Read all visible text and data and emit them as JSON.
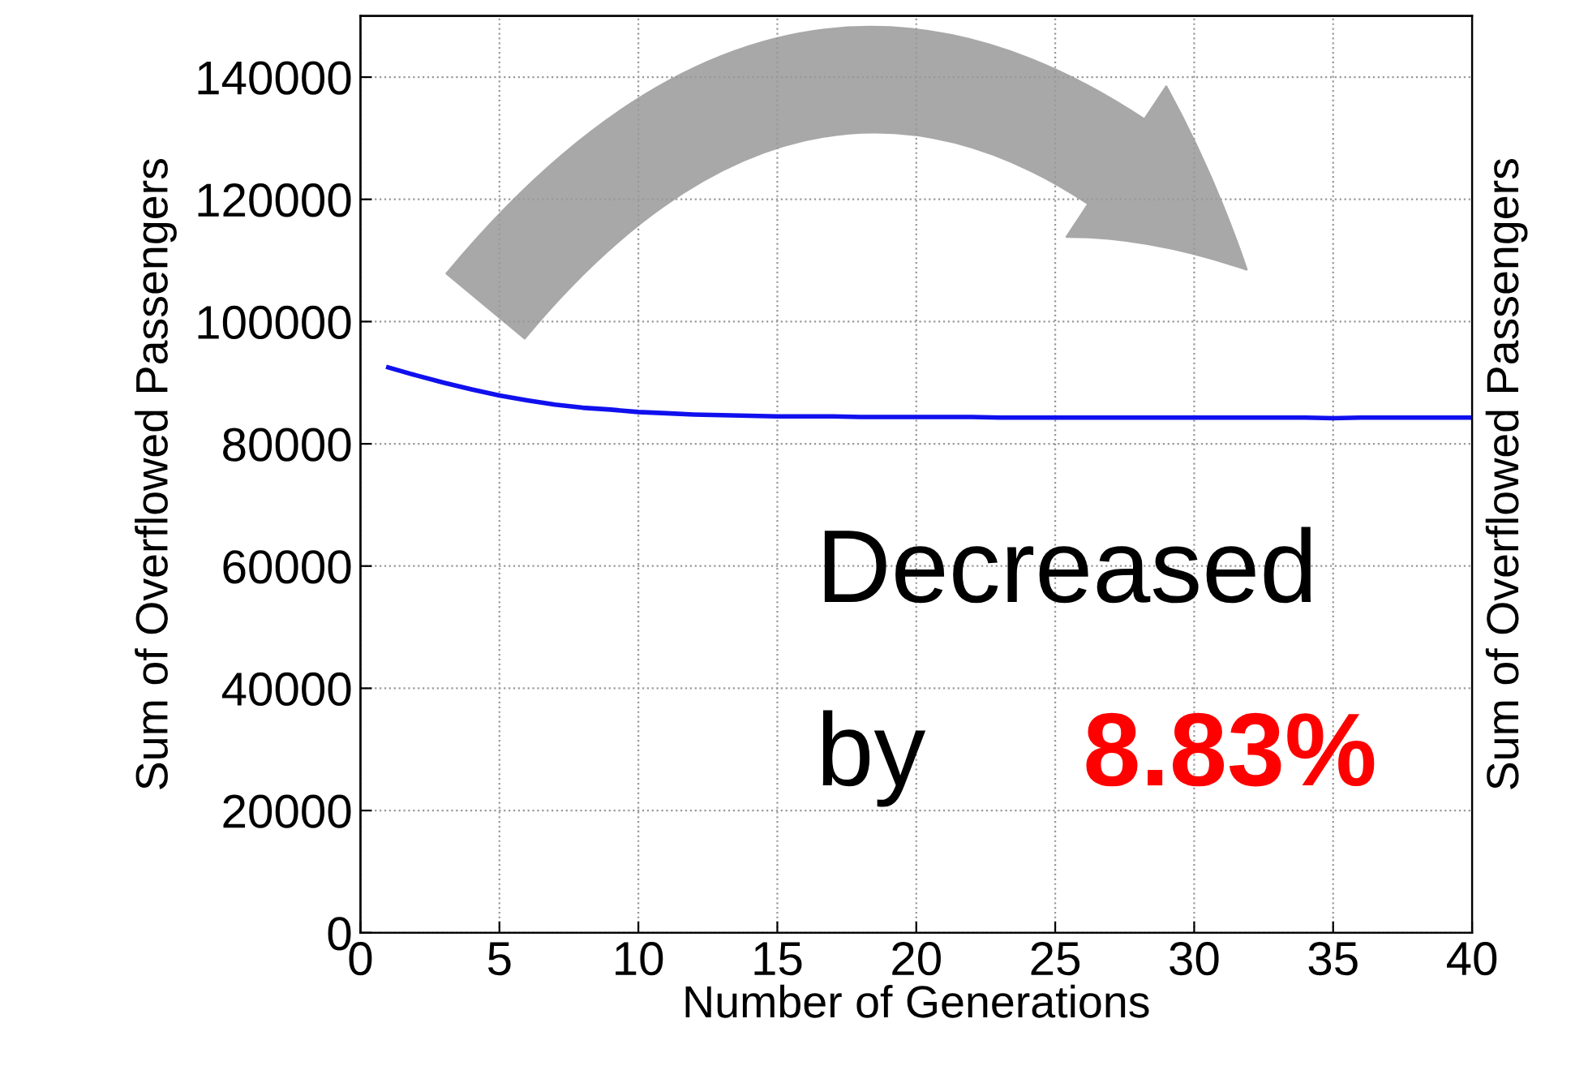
{
  "chart_data": {
    "type": "line",
    "xlabel": "Number of Generations",
    "ylabel": "Sum of Overflowed Passengers",
    "y2label": "Sum of Overflowed Passengers",
    "x": [
      1,
      2,
      3,
      4,
      5,
      6,
      7,
      8,
      9,
      10,
      11,
      12,
      13,
      14,
      15,
      16,
      17,
      18,
      19,
      20,
      21,
      22,
      23,
      24,
      25,
      26,
      27,
      28,
      29,
      30,
      31,
      32,
      33,
      34,
      35,
      36,
      37,
      38,
      39,
      40
    ],
    "series": [
      {
        "color": "#1010ee",
        "values": [
          92500,
          91200,
          90000,
          88900,
          87900,
          87100,
          86400,
          85900,
          85600,
          85200,
          85000,
          84800,
          84700,
          84600,
          84500,
          84500,
          84500,
          84400,
          84400,
          84400,
          84400,
          84400,
          84300,
          84300,
          84300,
          84300,
          84300,
          84300,
          84300,
          84300,
          84300,
          84300,
          84300,
          84300,
          84200,
          84300,
          84300,
          84300,
          84300,
          84300
        ]
      }
    ],
    "xlim": [
      0,
      40
    ],
    "xticks": [
      0,
      5,
      10,
      15,
      20,
      25,
      30,
      35,
      40
    ],
    "ylim": [
      0,
      150000
    ],
    "yticks": [
      0,
      20000,
      40000,
      60000,
      80000,
      100000,
      120000,
      140000
    ],
    "grid": true,
    "marker": "none",
    "line_style": "solid",
    "tick_labels": "xy",
    "annotations": [
      "Decreased",
      "by",
      "8.83%"
    ]
  }
}
